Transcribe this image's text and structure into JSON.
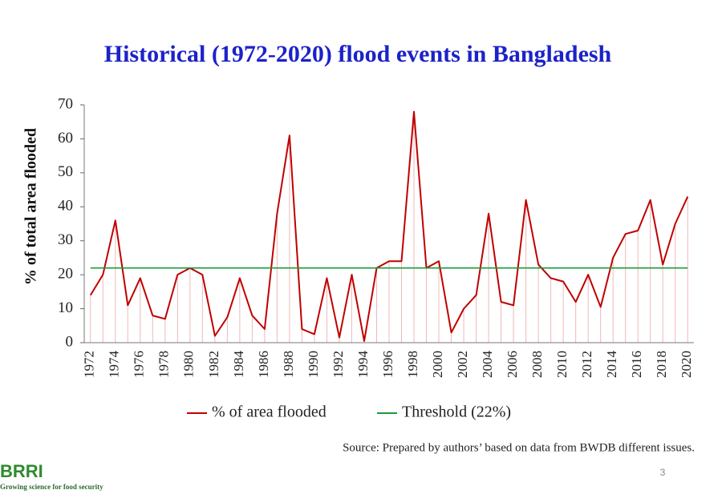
{
  "chart_data": {
    "type": "line",
    "title": "Historical (1972-2020) flood events in Bangladesh",
    "y_label": "% of  total area flooded",
    "categories": [
      "1972",
      null,
      "1974",
      null,
      "1976",
      null,
      "1978",
      null,
      "1980",
      null,
      "1982",
      null,
      "1984",
      null,
      "1986",
      null,
      "1988",
      null,
      "1990",
      null,
      "1992",
      null,
      "1994",
      null,
      "1996",
      null,
      "1998",
      null,
      "2000",
      null,
      "2002",
      null,
      "2004",
      null,
      "2006",
      null,
      "2008",
      null,
      "2010",
      null,
      "2012",
      null,
      "2014",
      null,
      "2016",
      null,
      "2018",
      null,
      "2020"
    ],
    "series": [
      {
        "name": "% of area flooded",
        "color": "#c00000",
        "values": [
          14,
          20,
          36,
          11,
          19,
          8,
          7,
          20,
          22,
          20,
          2,
          7.5,
          19,
          8,
          4,
          38,
          61,
          4,
          2.5,
          19,
          1.5,
          20,
          0.5,
          22,
          24,
          24,
          68,
          22,
          24,
          3,
          10,
          14,
          38,
          12,
          11,
          42,
          23,
          19,
          18,
          12,
          20,
          10.5,
          25,
          32,
          33,
          42,
          23,
          35,
          43
        ]
      },
      {
        "name": "Threshold (22%)",
        "color": "#1a9b3c",
        "values": [
          22,
          22,
          22,
          22,
          22,
          22,
          22,
          22,
          22,
          22,
          22,
          22,
          22,
          22,
          22,
          22,
          22,
          22,
          22,
          22,
          22,
          22,
          22,
          22,
          22,
          22,
          22,
          22,
          22,
          22,
          22,
          22,
          22,
          22,
          22,
          22,
          22,
          22,
          22,
          22,
          22,
          22,
          22,
          22,
          22,
          22,
          22,
          22,
          22
        ]
      }
    ],
    "drop_lines": true,
    "ylim": [
      0,
      70
    ],
    "yticks": [
      0,
      10,
      20,
      30,
      40,
      50,
      60,
      70
    ]
  },
  "source": "Source: Prepared by authors’ based on data from BWDB different issues.",
  "page_number": "3",
  "logo": {
    "name": "BRRI",
    "tagline": "Growing science for food security"
  }
}
